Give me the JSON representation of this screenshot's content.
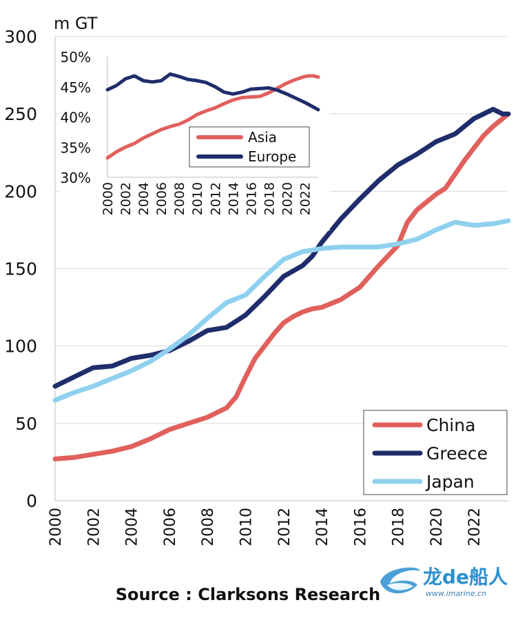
{
  "source": "Source : Clarksons Research",
  "watermark": {
    "brand": "龙de船人",
    "url": "www.imarine.cn"
  },
  "chart_data": [
    {
      "type": "line",
      "ylabel": "m GT",
      "ylim": [
        0,
        300
      ],
      "yticks": [
        0,
        50,
        100,
        150,
        200,
        250,
        300
      ],
      "xlim": [
        2000,
        2023.8
      ],
      "xticks": [
        "2000",
        "2002",
        "2004",
        "2006",
        "2008",
        "2010",
        "2012",
        "2014",
        "2016",
        "2018",
        "2020",
        "2022"
      ],
      "grid": true,
      "legend": "bottom-right",
      "series": [
        {
          "name": "China",
          "color": "#e0605c",
          "x": [
            2000,
            2001,
            2002,
            2003,
            2004,
            2005,
            2006,
            2007,
            2008,
            2009,
            2009.5,
            2010,
            2010.5,
            2011,
            2011.5,
            2012,
            2012.5,
            2013,
            2013.5,
            2014,
            2015,
            2016,
            2017,
            2018,
            2018.5,
            2019,
            2020,
            2020.5,
            2021,
            2021.5,
            2022,
            2022.5,
            2023,
            2023.8
          ],
          "y": [
            27,
            28,
            30,
            32,
            35,
            40,
            46,
            50,
            54,
            60,
            67,
            80,
            92,
            100,
            108,
            115,
            119,
            122,
            124,
            125,
            130,
            138,
            152,
            165,
            180,
            188,
            198,
            202,
            211,
            220,
            228,
            236,
            242,
            250
          ]
        },
        {
          "name": "Greece",
          "color": "#1f2d6b",
          "x": [
            2000,
            2001,
            2002,
            2003,
            2004,
            2005,
            2006,
            2007,
            2008,
            2009,
            2010,
            2011,
            2012,
            2013,
            2013.5,
            2014,
            2015,
            2016,
            2017,
            2018,
            2019,
            2020,
            2021,
            2022,
            2022.5,
            2023,
            2023.5,
            2023.8
          ],
          "y": [
            74,
            80,
            86,
            87,
            92,
            94,
            97,
            103,
            110,
            112,
            120,
            132,
            145,
            152,
            158,
            167,
            182,
            195,
            207,
            217,
            224,
            232,
            237,
            247,
            250,
            253,
            250,
            250
          ]
        },
        {
          "name": "Japan",
          "color": "#8fd0ef",
          "x": [
            2000,
            2001,
            2002,
            2003,
            2004,
            2005,
            2006,
            2007,
            2008,
            2009,
            2010,
            2011,
            2012,
            2013,
            2014,
            2015,
            2016,
            2017,
            2018,
            2019,
            2020,
            2021,
            2022,
            2023,
            2023.8
          ],
          "y": [
            65,
            70,
            74,
            79,
            84,
            90,
            98,
            107,
            118,
            128,
            133,
            145,
            156,
            161,
            163,
            164,
            164,
            164,
            166,
            169,
            175,
            180,
            178,
            179,
            181
          ]
        }
      ]
    },
    {
      "type": "line",
      "ylim": [
        30,
        50
      ],
      "yticks": [
        "30%",
        "35%",
        "40%",
        "45%",
        "50%"
      ],
      "xlim": [
        2000,
        2023.5
      ],
      "xticks": [
        "2000",
        "2002",
        "2004",
        "2006",
        "2008",
        "2010",
        "2012",
        "2014",
        "2016",
        "2018",
        "2020",
        "2022"
      ],
      "grid": false,
      "legend": "center",
      "series": [
        {
          "name": "Asia",
          "color": "#e0605c",
          "x": [
            2000,
            2001,
            2002,
            2003,
            2004,
            2005,
            2006,
            2007,
            2008,
            2009,
            2010,
            2011,
            2012,
            2013,
            2014,
            2015,
            2016,
            2017,
            2018,
            2019,
            2020,
            2021,
            2022,
            2022.5,
            2023,
            2023.5
          ],
          "y": [
            33.2,
            34.2,
            35.0,
            35.6,
            36.5,
            37.2,
            37.9,
            38.4,
            38.8,
            39.5,
            40.4,
            41.0,
            41.5,
            42.2,
            42.8,
            43.2,
            43.3,
            43.4,
            44.0,
            44.8,
            45.6,
            46.2,
            46.7,
            46.8,
            46.8,
            46.6
          ]
        },
        {
          "name": "Europe",
          "color": "#1f2d6b",
          "x": [
            2000,
            2001,
            2002,
            2003,
            2004,
            2005,
            2006,
            2007,
            2008,
            2009,
            2010,
            2011,
            2012,
            2013,
            2014,
            2015,
            2016,
            2017,
            2018,
            2019,
            2020,
            2021,
            2022,
            2023,
            2023.5
          ],
          "y": [
            44.5,
            45.2,
            46.3,
            46.8,
            46.0,
            45.8,
            46.0,
            47.1,
            46.7,
            46.2,
            46.0,
            45.7,
            45.0,
            44.1,
            43.8,
            44.1,
            44.6,
            44.7,
            44.8,
            44.4,
            43.8,
            43.1,
            42.4,
            41.6,
            41.2
          ]
        }
      ]
    }
  ]
}
